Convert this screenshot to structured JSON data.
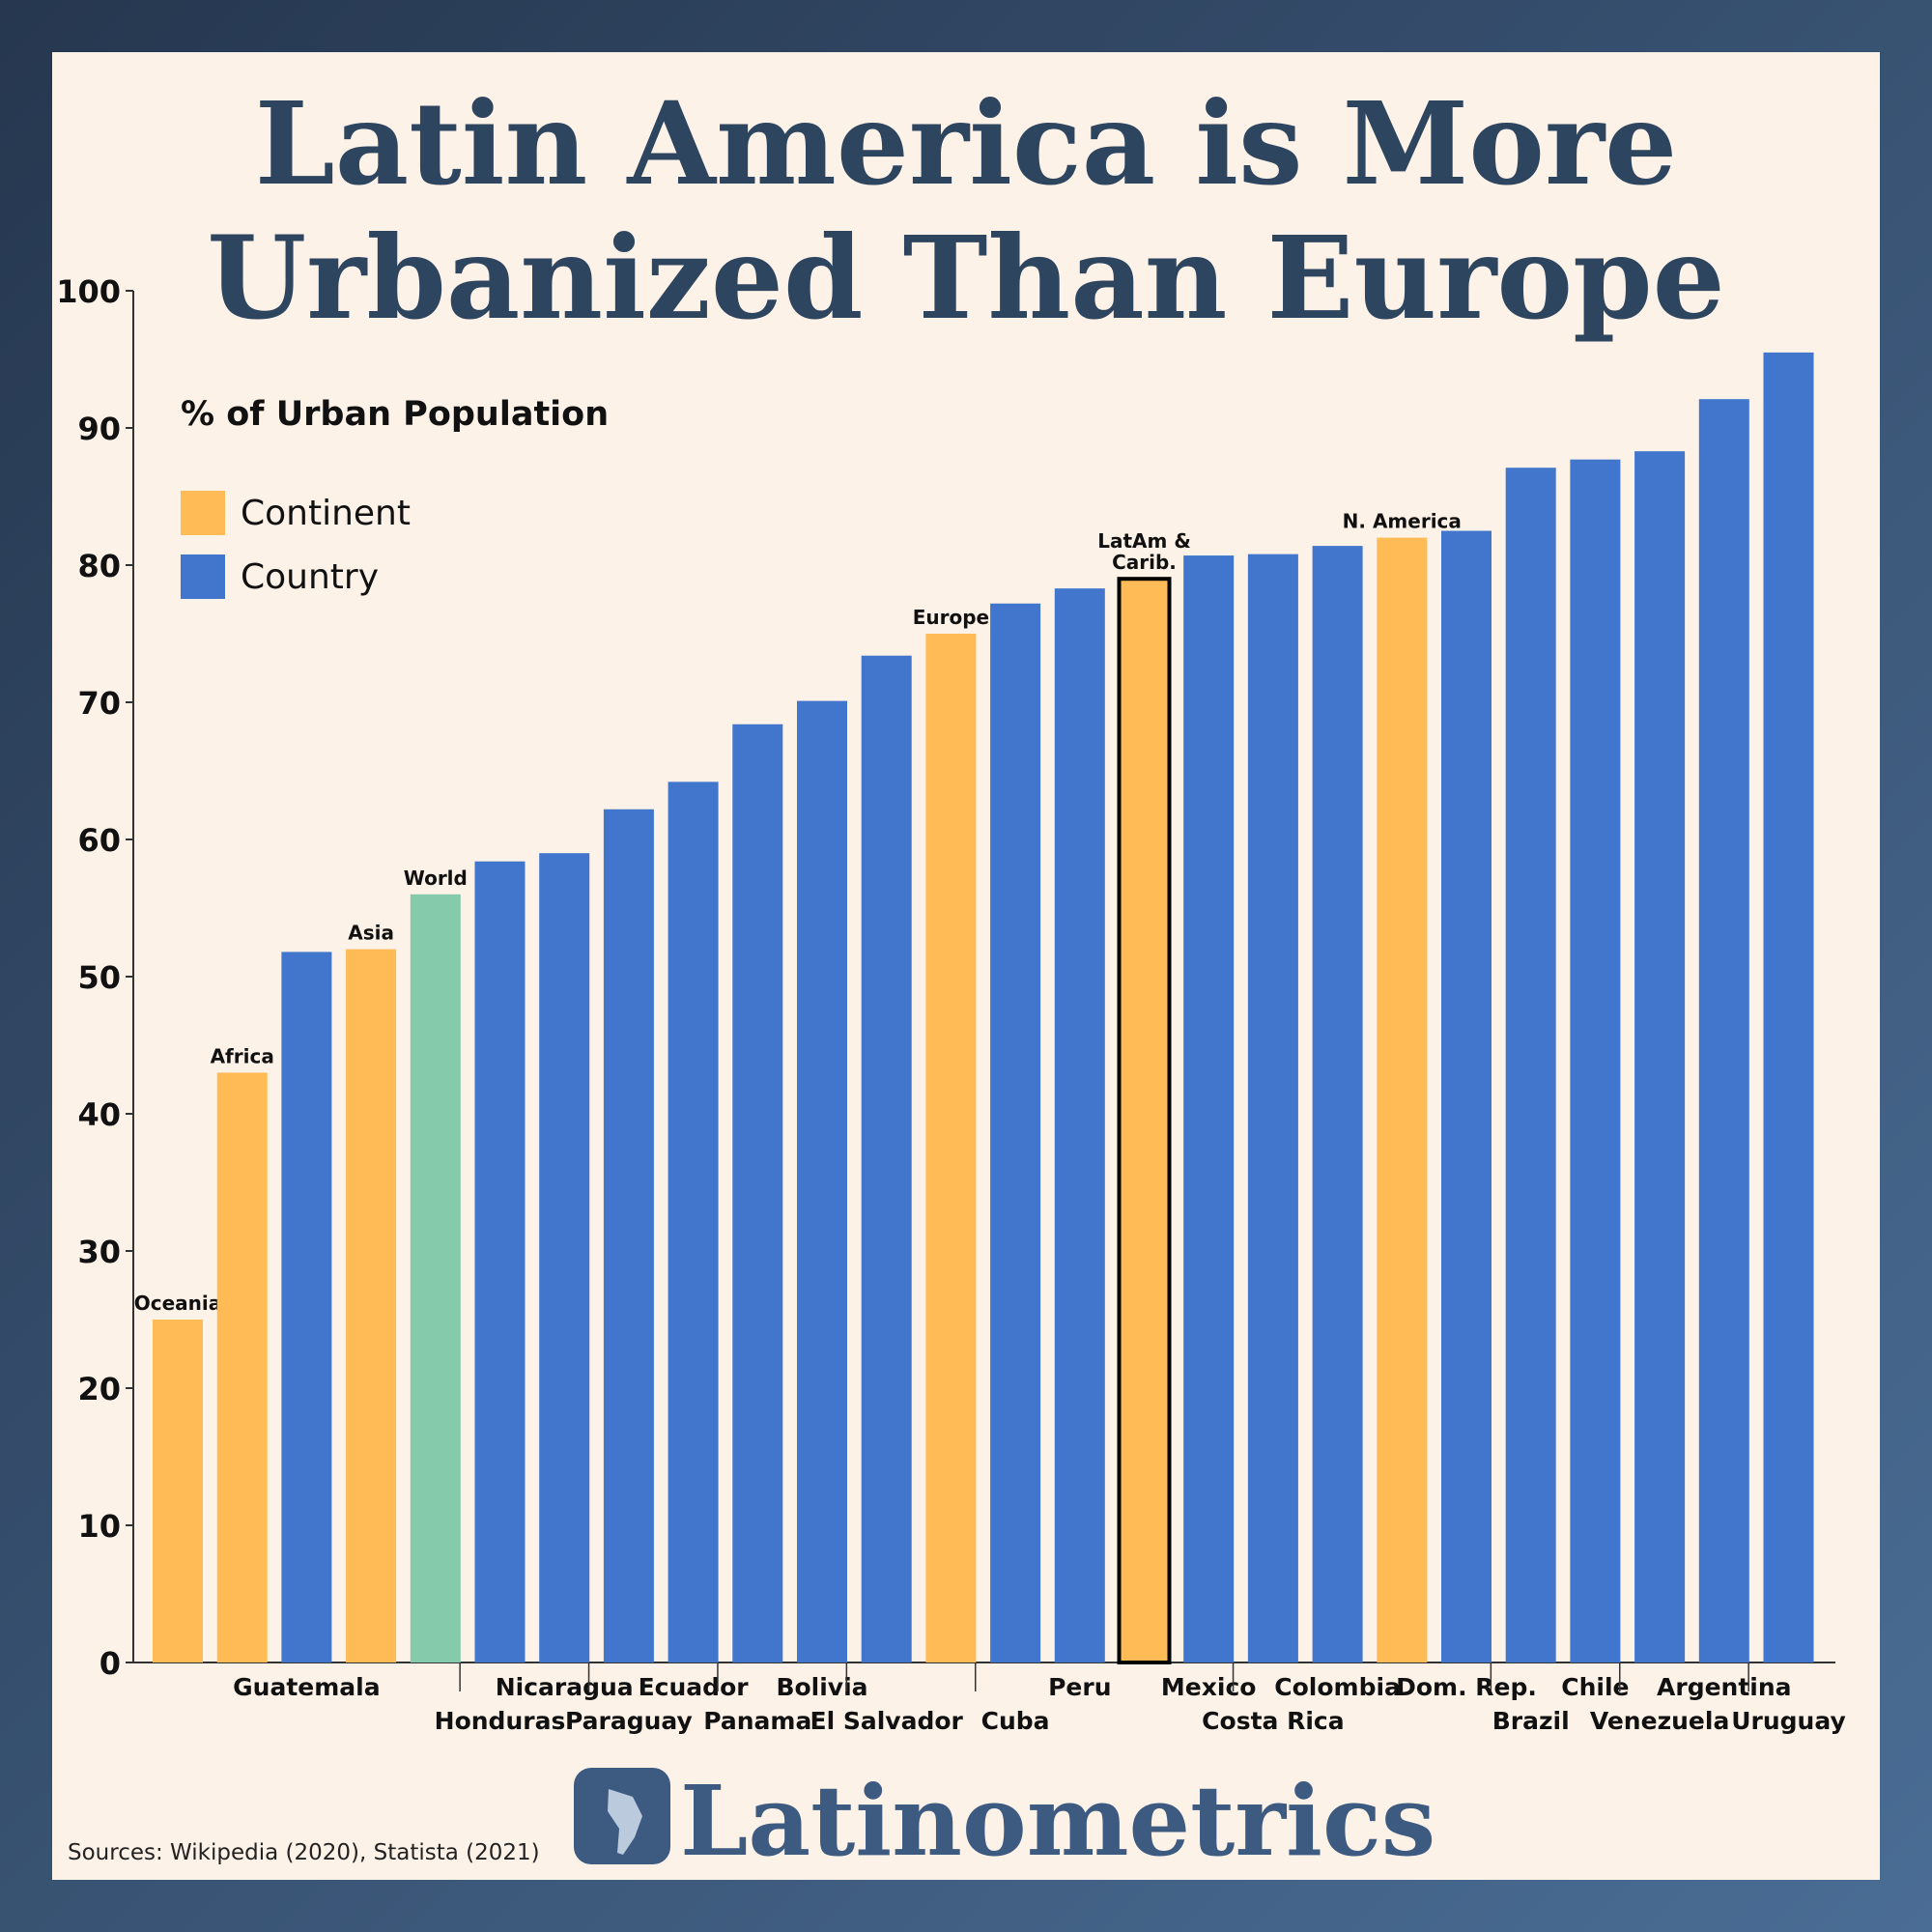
{
  "chart_data": {
    "type": "bar",
    "title": "Latin America is More\nUrbanized Than Europe",
    "subtitle": "% of Urban Population",
    "legend": [
      {
        "name": "Continent",
        "color": "#ffbb55"
      },
      {
        "name": "Country",
        "color": "#4176cc"
      }
    ],
    "categories": [
      "Oceania",
      "Africa",
      "Guatemala",
      "Asia",
      "World",
      "Honduras",
      "Nicaragua",
      "Paraguay",
      "Ecuador",
      "Panama",
      "Bolivia",
      "El Salvador",
      "Europe",
      "Cuba",
      "Peru",
      "LatAm &\nCarib.",
      "Mexico",
      "Costa Rica",
      "Colombia",
      "N. America",
      "Dom. Rep.",
      "Brazil",
      "Chile",
      "Venezuela",
      "Argentina",
      "Uruguay"
    ],
    "values": [
      25,
      43,
      51.8,
      52,
      56,
      58.4,
      59,
      62.2,
      64.2,
      68.4,
      70.1,
      73.4,
      75,
      77.2,
      78.3,
      79,
      80.7,
      80.8,
      81.4,
      82,
      82.5,
      87.1,
      87.7,
      88.3,
      92.1,
      95.5
    ],
    "colors": [
      "#ffbb55",
      "#ffbb55",
      "#4176cc",
      "#ffbb55",
      "#85cbab",
      "#4176cc",
      "#4176cc",
      "#4176cc",
      "#4176cc",
      "#4176cc",
      "#4176cc",
      "#4176cc",
      "#ffbb55",
      "#4176cc",
      "#4176cc",
      "#ffbb55",
      "#4176cc",
      "#4176cc",
      "#4176cc",
      "#ffbb55",
      "#4176cc",
      "#4176cc",
      "#4176cc",
      "#4176cc",
      "#4176cc",
      "#4176cc"
    ],
    "highlight": 15,
    "ylim": [
      0,
      100
    ],
    "yticks": [
      0,
      10,
      20,
      30,
      40,
      50,
      60,
      70,
      80,
      90,
      100
    ],
    "source": "Sources: Wikipedia (2020), Statista (2021)",
    "brand": "Latinometrics"
  }
}
